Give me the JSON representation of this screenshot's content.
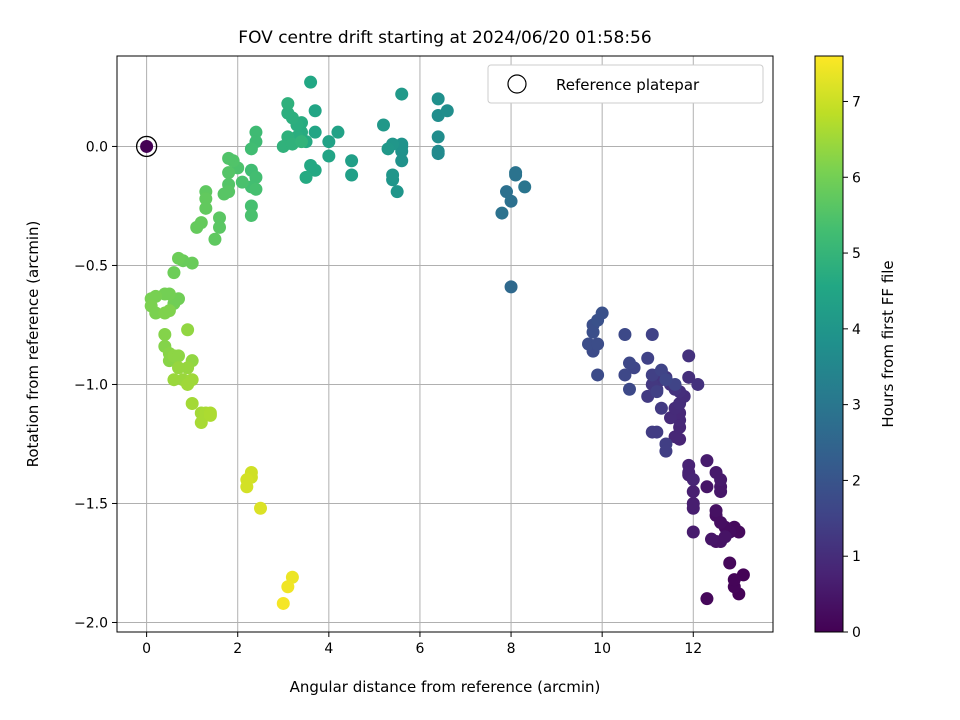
{
  "chart_data": {
    "type": "scatter",
    "title": "FOV centre drift starting at 2024/06/20 01:58:56",
    "xlabel": "Angular distance from reference (arcmin)",
    "ylabel": "Rotation from reference (arcmin)",
    "xlim": [
      -0.65,
      13.75
    ],
    "ylim": [
      -2.04,
      0.38
    ],
    "x_ticks": [
      0,
      2,
      4,
      6,
      8,
      10,
      12
    ],
    "y_ticks": [
      0.0,
      -0.5,
      -1.0,
      -1.5,
      -2.0
    ],
    "x_tick_labels": [
      "0",
      "2",
      "4",
      "6",
      "8",
      "10",
      "12"
    ],
    "y_tick_labels": [
      "0.0",
      "−0.5",
      "−1.0",
      "−1.5",
      "−2.0"
    ],
    "grid": true,
    "legend": {
      "position": "upper-right",
      "entries": [
        "Reference platepar"
      ]
    },
    "colorbar": {
      "label": "Hours from first FF file",
      "range": [
        0,
        7.6
      ],
      "ticks": [
        0,
        1,
        2,
        3,
        4,
        5,
        6,
        7
      ],
      "tick_labels": [
        "0",
        "1",
        "2",
        "3",
        "4",
        "5",
        "6",
        "7"
      ],
      "colormap": "viridis"
    },
    "reference": {
      "x": 0,
      "y": 0
    },
    "points": [
      [
        13.1,
        -1.8,
        0.05
      ],
      [
        13.0,
        -1.88,
        0.05
      ],
      [
        12.9,
        -1.85,
        0.1
      ],
      [
        12.9,
        -1.82,
        0.1
      ],
      [
        12.3,
        -1.9,
        0.15
      ],
      [
        12.8,
        -1.75,
        0.15
      ],
      [
        13.0,
        -1.62,
        0.2
      ],
      [
        12.9,
        -1.6,
        0.2
      ],
      [
        12.8,
        -1.62,
        0.25
      ],
      [
        12.7,
        -1.6,
        0.25
      ],
      [
        12.6,
        -1.58,
        0.3
      ],
      [
        12.5,
        -1.55,
        0.3
      ],
      [
        12.5,
        -1.53,
        0.35
      ],
      [
        12.5,
        -1.66,
        0.35
      ],
      [
        12.6,
        -1.66,
        0.4
      ],
      [
        12.7,
        -1.64,
        0.4
      ],
      [
        12.4,
        -1.65,
        0.45
      ],
      [
        12.3,
        -1.43,
        0.45
      ],
      [
        12.6,
        -1.45,
        0.5
      ],
      [
        12.6,
        -1.43,
        0.5
      ],
      [
        12.6,
        -1.4,
        0.55
      ],
      [
        12.5,
        -1.37,
        0.55
      ],
      [
        12.3,
        -1.32,
        0.6
      ],
      [
        12.0,
        -1.62,
        0.6
      ],
      [
        12.0,
        -1.52,
        0.65
      ],
      [
        12.0,
        -1.5,
        0.65
      ],
      [
        12.0,
        -1.45,
        0.7
      ],
      [
        11.9,
        -1.38,
        0.7
      ],
      [
        11.9,
        -1.34,
        0.75
      ],
      [
        11.9,
        -1.37,
        0.75
      ],
      [
        12.0,
        -1.4,
        0.8
      ],
      [
        11.7,
        -1.23,
        0.8
      ],
      [
        11.6,
        -1.22,
        0.85
      ],
      [
        11.7,
        -1.18,
        0.85
      ],
      [
        11.7,
        -1.15,
        0.9
      ],
      [
        11.7,
        -1.12,
        0.9
      ],
      [
        11.5,
        -1.14,
        0.95
      ],
      [
        11.6,
        -1.1,
        0.95
      ],
      [
        11.7,
        -1.08,
        1.0
      ],
      [
        11.8,
        -1.05,
        1.0
      ],
      [
        11.7,
        -1.03,
        1.05
      ],
      [
        11.9,
        -0.97,
        1.05
      ],
      [
        12.1,
        -1.0,
        1.1
      ],
      [
        11.9,
        -0.88,
        1.1
      ],
      [
        11.6,
        -1.02,
        1.15
      ],
      [
        11.5,
        -1.0,
        1.15
      ],
      [
        11.4,
        -0.97,
        1.2
      ],
      [
        11.3,
        -0.98,
        1.2
      ],
      [
        11.2,
        -1.02,
        1.25
      ],
      [
        11.1,
        -1.0,
        1.25
      ],
      [
        11.0,
        -1.05,
        1.3
      ],
      [
        11.3,
        -1.1,
        1.3
      ],
      [
        11.2,
        -1.2,
        1.35
      ],
      [
        11.1,
        -1.2,
        1.35
      ],
      [
        11.4,
        -1.25,
        1.4
      ],
      [
        11.4,
        -1.28,
        1.4
      ],
      [
        11.2,
        -1.03,
        1.45
      ],
      [
        11.1,
        -0.96,
        1.45
      ],
      [
        11.0,
        -0.89,
        1.5
      ],
      [
        11.1,
        -0.79,
        1.5
      ],
      [
        11.6,
        -1.0,
        1.55
      ],
      [
        11.3,
        -0.94,
        1.55
      ],
      [
        11.4,
        -0.98,
        1.6
      ],
      [
        10.7,
        -0.93,
        1.6
      ],
      [
        10.6,
        -0.91,
        1.65
      ],
      [
        10.5,
        -0.96,
        1.65
      ],
      [
        10.6,
        -1.02,
        1.7
      ],
      [
        10.5,
        -0.79,
        1.7
      ],
      [
        9.9,
        -0.96,
        1.75
      ],
      [
        9.8,
        -0.86,
        1.75
      ],
      [
        9.7,
        -0.83,
        1.8
      ],
      [
        9.9,
        -0.83,
        1.8
      ],
      [
        9.8,
        -0.78,
        1.85
      ],
      [
        9.8,
        -0.75,
        1.85
      ],
      [
        9.9,
        -0.73,
        1.9
      ],
      [
        10.0,
        -0.7,
        1.9
      ],
      [
        8.0,
        -0.59,
        2.6
      ],
      [
        8.0,
        -0.23,
        2.8
      ],
      [
        7.9,
        -0.19,
        2.8
      ],
      [
        7.8,
        -0.28,
        2.85
      ],
      [
        8.1,
        -0.12,
        2.9
      ],
      [
        8.1,
        -0.11,
        2.9
      ],
      [
        8.3,
        -0.17,
        2.95
      ],
      [
        6.4,
        -0.03,
        3.6
      ],
      [
        6.4,
        -0.02,
        3.6
      ],
      [
        6.4,
        0.04,
        3.7
      ],
      [
        6.4,
        0.13,
        3.7
      ],
      [
        6.6,
        0.15,
        3.75
      ],
      [
        6.4,
        0.2,
        3.8
      ],
      [
        5.6,
        -0.06,
        3.85
      ],
      [
        5.6,
        -0.02,
        3.85
      ],
      [
        5.6,
        0.0,
        3.9
      ],
      [
        5.6,
        0.01,
        3.9
      ],
      [
        5.5,
        -0.19,
        3.95
      ],
      [
        5.4,
        -0.14,
        3.95
      ],
      [
        5.4,
        -0.12,
        4.0
      ],
      [
        5.4,
        0.01,
        4.0
      ],
      [
        5.3,
        -0.01,
        4.05
      ],
      [
        5.2,
        0.09,
        4.05
      ],
      [
        5.6,
        0.22,
        4.1
      ],
      [
        4.5,
        -0.12,
        4.3
      ],
      [
        4.5,
        -0.06,
        4.3
      ],
      [
        4.2,
        0.06,
        4.4
      ],
      [
        4.0,
        0.02,
        4.4
      ],
      [
        4.0,
        -0.04,
        4.45
      ],
      [
        3.7,
        0.06,
        4.5
      ],
      [
        3.7,
        0.15,
        4.5
      ],
      [
        3.6,
        0.27,
        4.55
      ],
      [
        3.7,
        -0.1,
        4.6
      ],
      [
        3.6,
        -0.08,
        4.6
      ],
      [
        3.5,
        -0.13,
        4.65
      ],
      [
        3.5,
        0.02,
        4.65
      ],
      [
        3.4,
        0.06,
        4.7
      ],
      [
        3.4,
        0.1,
        4.7
      ],
      [
        3.3,
        0.04,
        4.75
      ],
      [
        3.3,
        0.09,
        4.75
      ],
      [
        3.2,
        0.12,
        4.8
      ],
      [
        3.1,
        0.14,
        4.8
      ],
      [
        3.1,
        0.18,
        4.85
      ],
      [
        3.1,
        0.04,
        4.85
      ],
      [
        3.0,
        0.0,
        4.9
      ],
      [
        3.2,
        0.01,
        4.9
      ],
      [
        3.4,
        0.02,
        4.95
      ],
      [
        2.4,
        0.06,
        5.2
      ],
      [
        2.4,
        0.02,
        5.2
      ],
      [
        2.3,
        -0.01,
        5.25
      ],
      [
        2.3,
        -0.1,
        5.25
      ],
      [
        2.4,
        -0.13,
        5.3
      ],
      [
        2.3,
        -0.17,
        5.3
      ],
      [
        2.4,
        -0.18,
        5.35
      ],
      [
        2.3,
        -0.25,
        5.35
      ],
      [
        2.3,
        -0.29,
        5.4
      ],
      [
        2.1,
        -0.15,
        5.4
      ],
      [
        2.0,
        -0.09,
        5.45
      ],
      [
        1.9,
        -0.06,
        5.5
      ],
      [
        1.8,
        -0.05,
        5.5
      ],
      [
        1.8,
        -0.11,
        5.55
      ],
      [
        1.8,
        -0.16,
        5.55
      ],
      [
        1.8,
        -0.19,
        5.6
      ],
      [
        1.7,
        -0.2,
        5.6
      ],
      [
        1.6,
        -0.3,
        5.65
      ],
      [
        1.6,
        -0.34,
        5.65
      ],
      [
        1.5,
        -0.39,
        5.7
      ],
      [
        1.3,
        -0.19,
        5.7
      ],
      [
        1.3,
        -0.22,
        5.75
      ],
      [
        1.3,
        -0.26,
        5.75
      ],
      [
        1.2,
        -0.32,
        5.8
      ],
      [
        1.1,
        -0.34,
        5.8
      ],
      [
        1.0,
        -0.49,
        5.85
      ],
      [
        0.8,
        -0.48,
        5.85
      ],
      [
        0.7,
        -0.47,
        5.9
      ],
      [
        0.6,
        -0.53,
        5.9
      ],
      [
        0.7,
        -0.64,
        5.95
      ],
      [
        0.6,
        -0.66,
        5.95
      ],
      [
        0.5,
        -0.62,
        6.0
      ],
      [
        0.4,
        -0.62,
        6.0
      ],
      [
        0.2,
        -0.63,
        6.05
      ],
      [
        0.1,
        -0.64,
        6.05
      ],
      [
        0.1,
        -0.67,
        6.1
      ],
      [
        0.2,
        -0.7,
        6.1
      ],
      [
        0.4,
        -0.7,
        6.15
      ],
      [
        0.5,
        -0.69,
        6.15
      ],
      [
        0.4,
        -0.79,
        6.2
      ],
      [
        0.4,
        -0.84,
        6.2
      ],
      [
        0.5,
        -0.87,
        6.25
      ],
      [
        0.5,
        -0.9,
        6.25
      ],
      [
        0.6,
        -0.88,
        6.3
      ],
      [
        0.7,
        -0.88,
        6.3
      ],
      [
        0.9,
        -0.77,
        6.35
      ],
      [
        1.0,
        -0.9,
        6.35
      ],
      [
        0.9,
        -0.93,
        6.4
      ],
      [
        0.7,
        -0.93,
        6.4
      ],
      [
        0.6,
        -0.98,
        6.45
      ],
      [
        0.8,
        -0.98,
        6.45
      ],
      [
        0.9,
        -1.0,
        6.5
      ],
      [
        1.0,
        -0.98,
        6.5
      ],
      [
        1.0,
        -1.08,
        6.55
      ],
      [
        1.2,
        -1.12,
        6.55
      ],
      [
        1.2,
        -1.16,
        6.6
      ],
      [
        1.3,
        -1.12,
        6.6
      ],
      [
        1.4,
        -1.12,
        6.65
      ],
      [
        1.4,
        -1.13,
        6.65
      ],
      [
        2.3,
        -1.37,
        7.05
      ],
      [
        2.3,
        -1.39,
        7.05
      ],
      [
        2.2,
        -1.4,
        7.1
      ],
      [
        2.2,
        -1.43,
        7.1
      ],
      [
        2.5,
        -1.52,
        7.2
      ],
      [
        3.2,
        -1.81,
        7.4
      ],
      [
        3.1,
        -1.85,
        7.45
      ],
      [
        3.0,
        -1.92,
        7.5
      ]
    ]
  }
}
